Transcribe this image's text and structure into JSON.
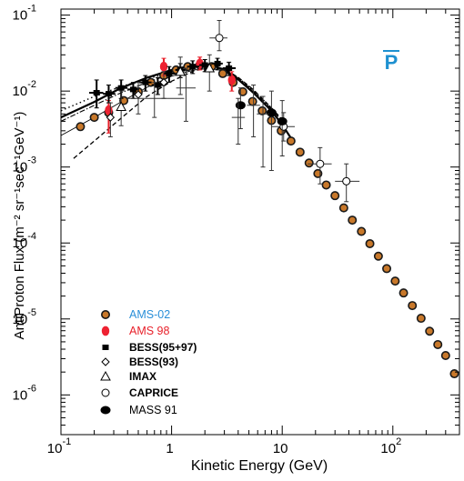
{
  "chart_data": {
    "type": "scatter",
    "title": "P",
    "title_color": "#1e90d0",
    "xlabel": "Kinetic Energy (GeV)",
    "ylabel": "AntiProton Flux (m⁻² sr⁻¹sec⁻¹GeV⁻¹)",
    "x_scale": "log",
    "y_scale": "log",
    "xlim": [
      0.1,
      400
    ],
    "ylim": [
      3e-07,
      0.12
    ],
    "x_ticks": [
      {
        "value": 0.1,
        "base": "10",
        "exp": "-1"
      },
      {
        "value": 1,
        "base": "1",
        "exp": ""
      },
      {
        "value": 10,
        "base": "10",
        "exp": ""
      },
      {
        "value": 100,
        "base": "10",
        "exp": "2"
      }
    ],
    "y_ticks": [
      {
        "value": 1e-06,
        "base": "10",
        "exp": "-6"
      },
      {
        "value": 1e-05,
        "base": "10",
        "exp": "-5"
      },
      {
        "value": 0.0001,
        "base": "10",
        "exp": "-4"
      },
      {
        "value": 0.001,
        "base": "10",
        "exp": "-3"
      },
      {
        "value": 0.01,
        "base": "10",
        "exp": "-2"
      },
      {
        "value": 0.1,
        "base": "10",
        "exp": "-1"
      }
    ],
    "legend_placement": "bottom-left",
    "legend": [
      {
        "label": "AMS-02",
        "marker": "orange-circle",
        "color": "#2a8fd8",
        "font": "sans"
      },
      {
        "label": "AMS 98",
        "marker": "red-ellipse",
        "color": "#e8202a",
        "font": "sans"
      },
      {
        "label": "BESS(95+97)",
        "marker": "filled-square",
        "color": "#000000",
        "font": "serif-bold"
      },
      {
        "label": "BESS(93)",
        "marker": "open-diamond",
        "color": "#000000",
        "font": "serif-bold"
      },
      {
        "label": "IMAX",
        "marker": "open-triangle",
        "color": "#000000",
        "font": "serif-bold"
      },
      {
        "label": "CAPRICE",
        "marker": "open-circle",
        "color": "#000000",
        "font": "serif-bold"
      },
      {
        "label": "MASS 91",
        "marker": "filled-circle",
        "color": "#000000",
        "font": "sans"
      }
    ],
    "series": [
      {
        "name": "AMS-02",
        "marker": "orange-circle",
        "x": [
          0.15,
          0.2,
          0.27,
          0.37,
          0.5,
          0.65,
          0.85,
          1.1,
          1.4,
          1.8,
          2.3,
          2.9,
          3.6,
          4.4,
          5.4,
          6.6,
          8.0,
          9.8,
          12,
          14.5,
          17.5,
          21,
          25,
          30,
          36,
          43,
          52,
          62,
          74,
          88,
          105,
          125,
          150,
          180,
          215,
          255,
          300,
          360
        ],
        "y": [
          0.0034,
          0.0045,
          0.0052,
          0.0075,
          0.0098,
          0.013,
          0.016,
          0.019,
          0.021,
          0.022,
          0.021,
          0.017,
          0.013,
          0.0098,
          0.0073,
          0.0055,
          0.0041,
          0.003,
          0.0022,
          0.00157,
          0.00113,
          0.00082,
          0.00058,
          0.00042,
          0.00029,
          0.0002,
          0.000142,
          9.8e-05,
          6.7e-05,
          4.6e-05,
          3.15e-05,
          2.2e-05,
          1.5e-05,
          1.02e-05,
          6.9e-06,
          4.6e-06,
          3.3e-06,
          1.9e-06
        ]
      },
      {
        "name": "AMS 98",
        "marker": "red-ellipse",
        "x": [
          0.27,
          0.85,
          1.8,
          3.5
        ],
        "y": [
          0.0056,
          0.021,
          0.023,
          0.014
        ],
        "y_lo": [
          0.0028,
          0.016,
          0.019,
          0.01
        ],
        "y_hi": [
          0.0075,
          0.027,
          0.028,
          0.018
        ]
      },
      {
        "name": "BESS(95+97)",
        "marker": "filled-square",
        "x": [
          0.21,
          0.27,
          0.35,
          0.45,
          0.58,
          0.75,
          0.95,
          1.2,
          1.55,
          2.0,
          2.6,
          3.3
        ],
        "y": [
          0.0095,
          0.0092,
          0.011,
          0.0105,
          0.013,
          0.012,
          0.017,
          0.019,
          0.021,
          0.022,
          0.023,
          0.02
        ],
        "y_lo": [
          0.006,
          0.007,
          0.008,
          0.008,
          0.01,
          0.009,
          0.013,
          0.015,
          0.017,
          0.018,
          0.019,
          0.016
        ],
        "y_hi": [
          0.014,
          0.012,
          0.014,
          0.013,
          0.016,
          0.015,
          0.021,
          0.023,
          0.025,
          0.026,
          0.027,
          0.024
        ],
        "x_lo": [
          0.18,
          0.24,
          0.31,
          0.4,
          0.51,
          0.66,
          0.85,
          1.08,
          1.38,
          1.78,
          2.3,
          2.9
        ],
        "x_hi": [
          0.24,
          0.31,
          0.4,
          0.51,
          0.66,
          0.85,
          1.08,
          1.38,
          1.78,
          2.3,
          2.9,
          3.8
        ]
      },
      {
        "name": "BESS(93)",
        "marker": "open-diamond",
        "x": [
          0.28,
          0.5,
          0.85
        ],
        "y": [
          0.0045,
          0.009,
          0.013
        ],
        "y_lo": [
          0.0025,
          0.005,
          0.008
        ],
        "y_hi": [
          0.007,
          0.013,
          0.018
        ]
      },
      {
        "name": "IMAX",
        "marker": "open-triangle",
        "x": [
          0.35,
          1.2,
          2.2
        ],
        "y": [
          0.0062,
          0.018,
          0.02
        ],
        "y_lo": [
          0.0035,
          0.009,
          0.01
        ],
        "y_hi": [
          0.01,
          0.028,
          0.03
        ]
      },
      {
        "name": "CAPRICE",
        "marker": "open-circle",
        "x": [
          2.7,
          10.3,
          22,
          38
        ],
        "y": [
          0.05,
          0.0034,
          0.0011,
          0.00065
        ],
        "y_lo": [
          0.034,
          0.0022,
          0.0006,
          0.00035
        ],
        "y_hi": [
          0.085,
          0.0052,
          0.0018,
          0.0011
        ],
        "x_lo": [
          2.2,
          8,
          17,
          30
        ],
        "x_hi": [
          3.2,
          13,
          28,
          50
        ]
      },
      {
        "name": "MASS 91",
        "marker": "filled-circle",
        "x": [
          4.2,
          8.0,
          10.0
        ],
        "y": [
          0.0065,
          0.0052,
          0.004
        ],
        "y_lo": [
          0.0032,
          0.0009,
          0.0014
        ],
        "y_hi": [
          0.011,
          0.01,
          0.0075
        ]
      },
      {
        "name": "",
        "marker": "errorbar-only",
        "x": [
          0.7,
          1.35,
          4.0,
          5.5,
          6.7
        ],
        "y": [
          0.008,
          0.011,
          0.0045,
          0.0065,
          0.005
        ],
        "y_lo": [
          0.0045,
          0.004,
          0.002,
          0.0025,
          0.001
        ],
        "y_hi": [
          0.013,
          0.02,
          0.008,
          0.012,
          0.0085
        ],
        "x_lo": [
          0.4,
          1.1,
          3.5,
          4.8,
          5.9
        ],
        "x_hi": [
          1.3,
          1.65,
          4.6,
          6.3,
          7.6
        ]
      }
    ],
    "model_curves": [
      {
        "style": "solid-thick",
        "x": [
          0.1,
          0.2,
          0.35,
          0.6,
          1.0,
          1.6,
          2.3,
          3.0,
          4.0,
          5.5,
          8.0,
          10.0,
          12.0
        ],
        "y": [
          0.0045,
          0.0072,
          0.011,
          0.015,
          0.019,
          0.022,
          0.022,
          0.019,
          0.0143,
          0.0095,
          0.0055,
          0.0036,
          0.0024
        ]
      },
      {
        "style": "solid-thin",
        "x": [
          0.1,
          0.2,
          0.35,
          0.6,
          1.0,
          1.6,
          2.3,
          3.0,
          4.0,
          5.5,
          8.0,
          10.0
        ],
        "y": [
          0.0026,
          0.0045,
          0.0072,
          0.0112,
          0.0157,
          0.019,
          0.02,
          0.0182,
          0.0139,
          0.0093,
          0.0054,
          0.0037
        ]
      },
      {
        "style": "dotted",
        "x": [
          0.1,
          0.2,
          0.35,
          0.6,
          1.0,
          1.6,
          2.3,
          3.0,
          4.0,
          5.5,
          8.0,
          10.0
        ],
        "y": [
          0.0055,
          0.0085,
          0.0115,
          0.0145,
          0.0175,
          0.0205,
          0.0215,
          0.0195,
          0.015,
          0.0102,
          0.006,
          0.0041
        ]
      },
      {
        "style": "dashed",
        "x": [
          0.13,
          0.2,
          0.35,
          0.6,
          1.0,
          1.6,
          2.3,
          3.0,
          4.0,
          5.5,
          8.0,
          10.0
        ],
        "y": [
          0.0013,
          0.0022,
          0.0044,
          0.0085,
          0.0135,
          0.0185,
          0.0205,
          0.0195,
          0.0152,
          0.0104,
          0.006,
          0.0042
        ]
      },
      {
        "style": "dash-dot",
        "x": [
          0.1,
          0.2,
          0.35,
          0.6,
          1.0,
          1.6,
          2.3,
          3.0,
          4.0,
          5.5,
          8.0,
          10.0
        ],
        "y": [
          0.004,
          0.0065,
          0.0095,
          0.013,
          0.0168,
          0.0198,
          0.0208,
          0.019,
          0.0148,
          0.01,
          0.0058,
          0.004
        ]
      }
    ]
  }
}
